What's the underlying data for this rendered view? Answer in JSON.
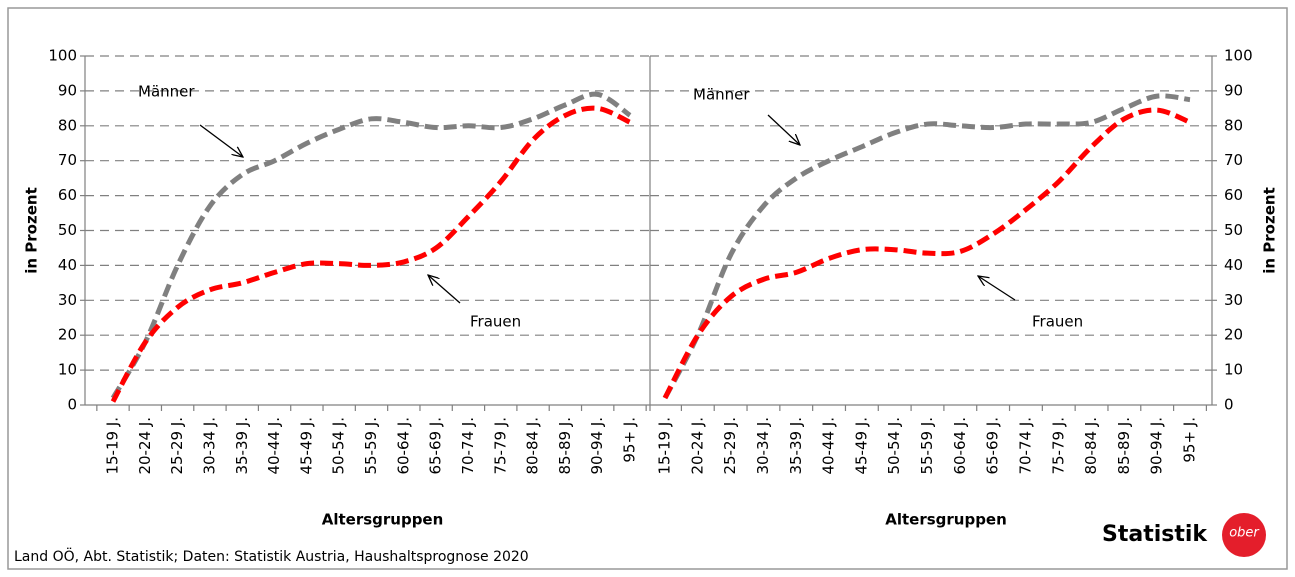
{
  "chart_data": [
    {
      "type": "line",
      "categories": [
        "15-19 J.",
        "20-24 J.",
        "25-29 J.",
        "30-34 J.",
        "35-39 J.",
        "40-44 J.",
        "45-49 J.",
        "50-54 J.",
        "55-59 J.",
        "60-64 J.",
        "65-69 J.",
        "70-74 J.",
        "75-79 J.",
        "80-84 J.",
        "85-89 J.",
        "90-94 J.",
        "95+ J."
      ],
      "series": [
        {
          "name": "Männer",
          "color": "#808080",
          "values": [
            2,
            18,
            40,
            57,
            66,
            70,
            75,
            79,
            82,
            81,
            79.5,
            80,
            79.5,
            82,
            86,
            89,
            83
          ]
        },
        {
          "name": "Frauen",
          "color": "#ff0000",
          "values": [
            1,
            18,
            28,
            33,
            35,
            38,
            40.5,
            40.5,
            40,
            41,
            45,
            54,
            64,
            76,
            83,
            85,
            81
          ]
        }
      ],
      "annotations": [
        "Männer",
        "Frauen"
      ],
      "ylabel": "in Prozent",
      "xlabel": "Altersgruppen",
      "ylim": [
        0,
        100
      ],
      "yticks": [
        0,
        10,
        20,
        30,
        40,
        50,
        60,
        70,
        80,
        90,
        100
      ],
      "grid": true
    },
    {
      "type": "line",
      "categories": [
        "15-19 J.",
        "20-24 J.",
        "25-29 J.",
        "30-34 J.",
        "35-39 J.",
        "40-44 J.",
        "45-49 J.",
        "50-54 J.",
        "55-59 J.",
        "60-64 J.",
        "65-69 J.",
        "70-74 J.",
        "75-79 J.",
        "80-84 J.",
        "85-89 J.",
        "90-94 J.",
        "95+ J."
      ],
      "series": [
        {
          "name": "Männer",
          "color": "#808080",
          "values": [
            2,
            20,
            43,
            57,
            65,
            70,
            74,
            78,
            80.5,
            80,
            79.5,
            80.5,
            80.5,
            81,
            85,
            88.5,
            87.5
          ]
        },
        {
          "name": "Frauen",
          "color": "#ff0000",
          "values": [
            2,
            20,
            31,
            36,
            38,
            42,
            44.5,
            44.5,
            43.5,
            44,
            49,
            56,
            64,
            74,
            82,
            84.5,
            81
          ]
        }
      ],
      "annotations": [
        "Männer",
        "Frauen"
      ],
      "ylabel": "in Prozent",
      "xlabel": "Altersgruppen",
      "ylim": [
        0,
        100
      ],
      "yticks": [
        0,
        10,
        20,
        30,
        40,
        50,
        60,
        70,
        80,
        90,
        100
      ],
      "grid": true
    }
  ],
  "source": "Land OÖ, Abt. Statistik; Daten: Statistik Austria, Haushaltsprognose  2020",
  "logo": {
    "text": "Statistik",
    "badge": "ober"
  }
}
